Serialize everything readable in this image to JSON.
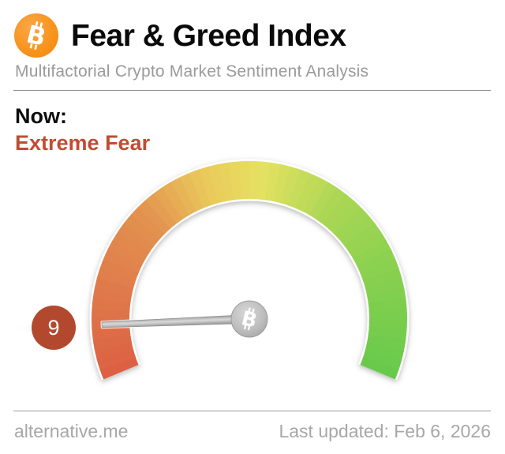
{
  "header": {
    "title": "Fear & Greed Index",
    "subtitle": "Multifactorial Crypto Market Sentiment Analysis",
    "logo_icon": "bitcoin-icon",
    "logo_color": "#f7931a"
  },
  "status": {
    "label": "Now:",
    "value_text": "Extreme Fear",
    "value_color": "#bf4d33"
  },
  "gauge": {
    "value": 9,
    "min": 0,
    "max": 100,
    "badge_color": "#b2492e",
    "start_angle": 202.5,
    "sweep_angle": 225,
    "needle_length": 187,
    "needle_color": "#b5b5b5",
    "hub_color": "#b9b9b9",
    "hub_icon": "bitcoin-icon",
    "gradient_stops": [
      {
        "t": 0,
        "color": "#dc5f43"
      },
      {
        "t": 0.15,
        "color": "#df7a4b"
      },
      {
        "t": 0.3,
        "color": "#e2924f"
      },
      {
        "t": 0.42,
        "color": "#eac95b"
      },
      {
        "t": 0.52,
        "color": "#e6e161"
      },
      {
        "t": 0.66,
        "color": "#abd755"
      },
      {
        "t": 0.8,
        "color": "#8bd150"
      },
      {
        "t": 1,
        "color": "#68c94b"
      }
    ]
  },
  "footer": {
    "site": "alternative.me",
    "last_updated": "Last updated: Feb 6, 2026"
  },
  "chart_data": {
    "type": "gauge",
    "title": "Fear & Greed Index",
    "subtitle": "Multifactorial Crypto Market Sentiment Analysis",
    "value": 9,
    "range": [
      0,
      100
    ],
    "label": "Extreme Fear",
    "scale": "red (Extreme Fear, 0) through orange and yellow to green (Greed, 100), 225-degree arc",
    "annotations": [
      "Now: Extreme Fear",
      "Last updated: Feb 6, 2026"
    ]
  }
}
